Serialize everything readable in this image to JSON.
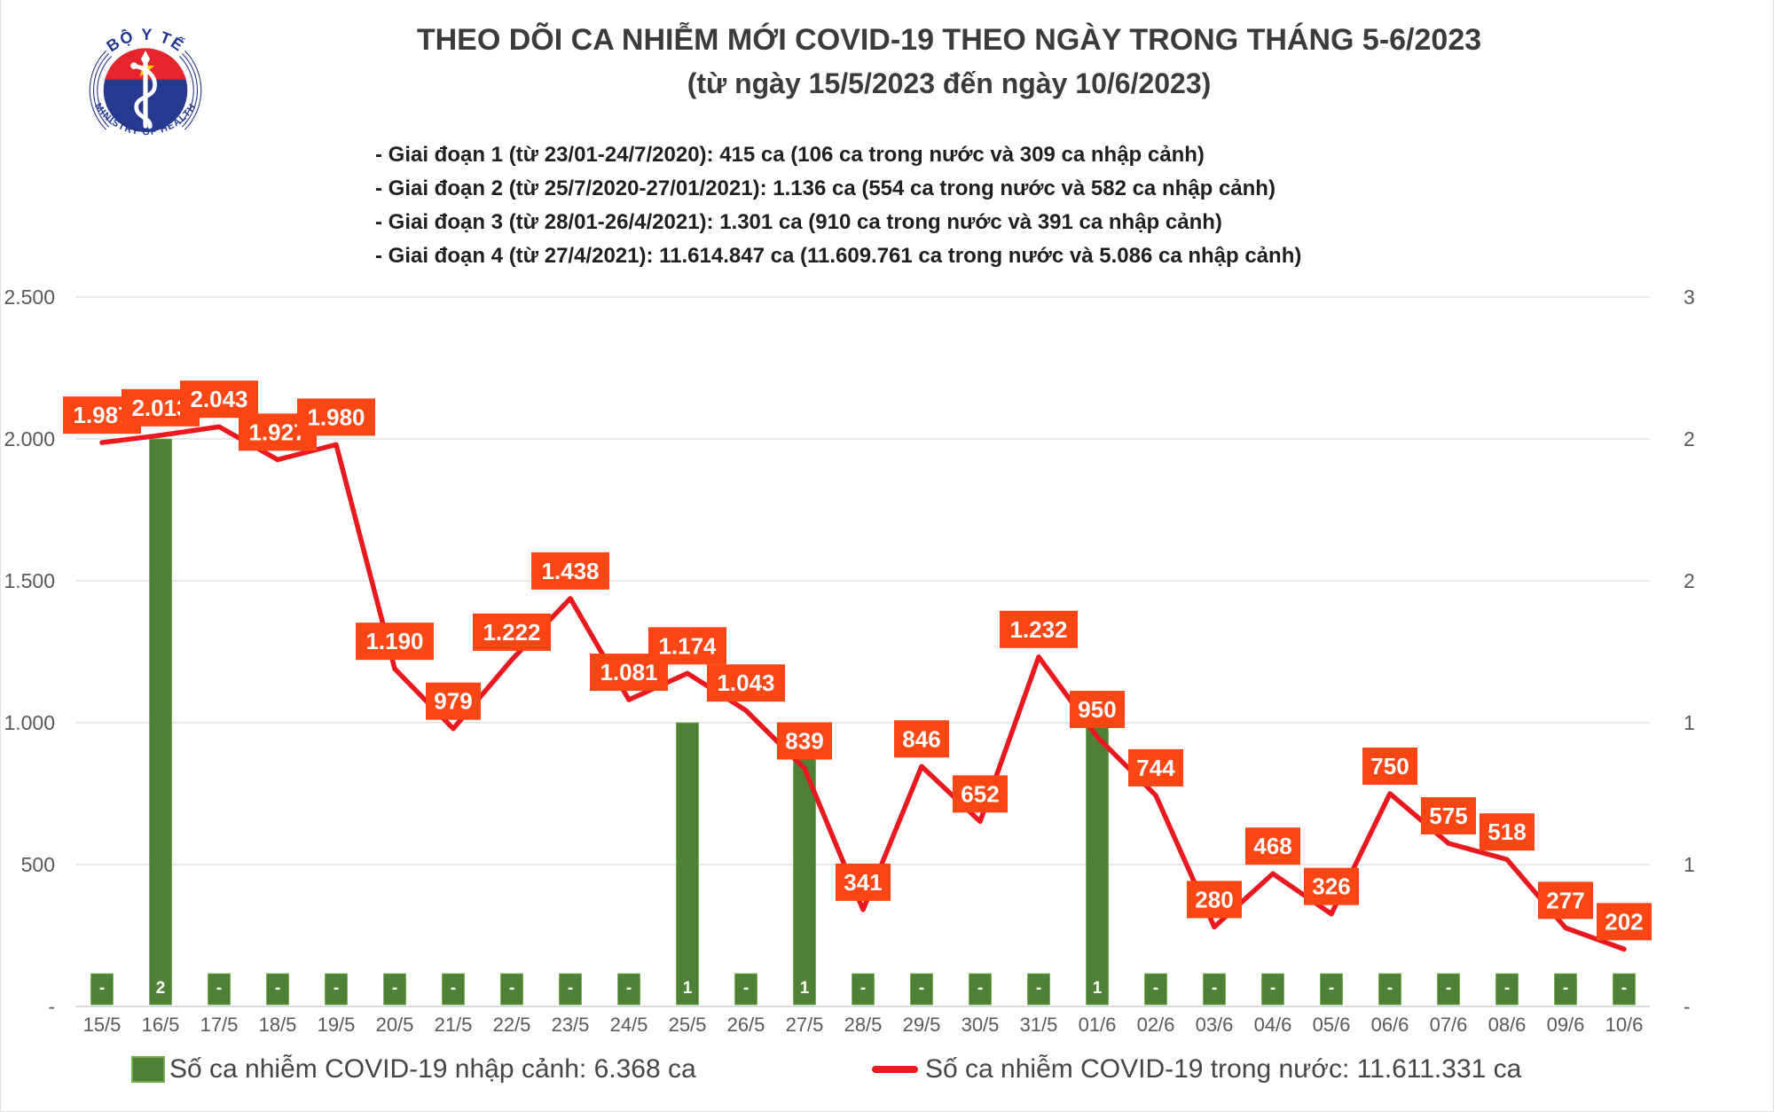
{
  "header": {
    "title": "THEO DÕI CA NHIỄM MỚI COVID-19 THEO NGÀY TRONG THÁNG 5-6/2023",
    "subtitle": "(từ ngày 15/5/2023 đến ngày 10/6/2023)",
    "bullets": [
      "- Giai đoạn 1 (từ 23/01-24/7/2020): 415 ca (106 ca trong nước và 309 ca nhập cảnh)",
      "- Giai đoạn 2 (từ 25/7/2020-27/01/2021): 1.136 ca (554 ca trong nước và 582 ca nhập cảnh)",
      "- Giai đoạn 3 (từ 28/01-26/4/2021): 1.301 ca (910 ca trong nước và 391 ca nhập cảnh)",
      "- Giai đoạn 4 (từ 27/4/2021): 11.614.847 ca (11.609.761 ca trong nước và 5.086 ca nhập cảnh)"
    ],
    "logo": {
      "top_text": "BỘ Y TẾ",
      "bottom_text": "MINISTRY OF HEALTH"
    }
  },
  "chart_data": {
    "type": "line+bar",
    "categories": [
      "15/5",
      "16/5",
      "17/5",
      "18/5",
      "19/5",
      "20/5",
      "21/5",
      "22/5",
      "23/5",
      "24/5",
      "25/5",
      "26/5",
      "27/5",
      "28/5",
      "29/5",
      "30/5",
      "31/5",
      "01/6",
      "02/6",
      "03/6",
      "04/6",
      "05/6",
      "06/6",
      "07/6",
      "08/6",
      "09/6",
      "10/6"
    ],
    "series": [
      {
        "name": "Số ca nhiễm COVID-19 trong nước",
        "type": "line",
        "axis": "left",
        "color": "#e9191f",
        "values": [
          1987,
          2013,
          2043,
          1927,
          1980,
          1190,
          979,
          1222,
          1438,
          1081,
          1174,
          1043,
          839,
          341,
          846,
          652,
          1232,
          950,
          744,
          280,
          468,
          326,
          750,
          575,
          518,
          277,
          202
        ],
        "point_labels": [
          "1.987",
          "2.013",
          "2.043",
          "1.927",
          "1.980",
          "1.190",
          "979",
          "1.222",
          "1.438",
          "1.081",
          "1.174",
          "1.043",
          "839",
          "341",
          "846",
          "652",
          "1.232",
          "950",
          "744",
          "280",
          "468",
          "326",
          "750",
          "575",
          "518",
          "277",
          "202"
        ]
      },
      {
        "name": "Số ca nhiễm COVID-19 nhập cảnh",
        "type": "bar",
        "axis": "right",
        "color": "#4f8136",
        "values": [
          0,
          2,
          0,
          0,
          0,
          0,
          0,
          0,
          0,
          0,
          1,
          0,
          1,
          0,
          0,
          0,
          0,
          1,
          0,
          0,
          0,
          0,
          0,
          0,
          0,
          0,
          0
        ],
        "point_labels": [
          "-",
          "2",
          "-",
          "-",
          "-",
          "-",
          "-",
          "-",
          "-",
          "-",
          "1",
          "-",
          "1",
          "-",
          "-",
          "-",
          "-",
          "1",
          "-",
          "-",
          "-",
          "-",
          "-",
          "-",
          "-",
          "-",
          "-"
        ]
      }
    ],
    "left_axis": {
      "min": 0,
      "max": 2500,
      "tick_labels": [
        "2.500",
        "2.000",
        "1.500",
        "1.000",
        "500",
        "-"
      ]
    },
    "right_axis": {
      "min": 0,
      "max": 2.5,
      "tick_labels": [
        "3",
        "2",
        "2",
        "1",
        "1",
        "-"
      ]
    },
    "grid": true,
    "label_box_color": "#fa4515",
    "label_text_color": "#ffffff",
    "axis_text_color": "#595959",
    "gridline_color": "#d9d9d9"
  },
  "legend": [
    {
      "swatch": "bar",
      "color": "#4f8136",
      "label": "Số ca nhiễm COVID-19 nhập cảnh: 6.368 ca"
    },
    {
      "swatch": "line",
      "color": "#e9191f",
      "label": "Số ca nhiễm COVID-19 trong nước: 11.611.331 ca"
    }
  ]
}
